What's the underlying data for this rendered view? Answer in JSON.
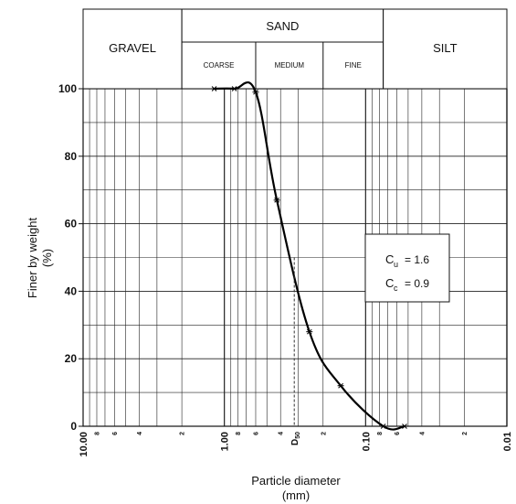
{
  "chart_data": {
    "type": "line",
    "xscale": "log",
    "x_reversed": true,
    "xlim": [
      10.0,
      0.01
    ],
    "ylim": [
      0,
      100
    ],
    "xlabel": "Particle diameter",
    "xlabel_unit": "(mm)",
    "ylabel": "Finer by weight",
    "ylabel_unit": "(%)",
    "y_ticks": [
      "0",
      "20",
      "40",
      "60",
      "80",
      "100"
    ],
    "x_major_ticks": [
      {
        "value": 10.0,
        "label": "10.00"
      },
      {
        "value": 1.0,
        "label": "1.00"
      },
      {
        "value": 0.1,
        "label": "0.10"
      },
      {
        "value": 0.01,
        "label": "0.01"
      }
    ],
    "x_minor_labels": [
      {
        "value": 8,
        "label": "8"
      },
      {
        "value": 6,
        "label": "6"
      },
      {
        "value": 4,
        "label": "4"
      },
      {
        "value": 2,
        "label": "2"
      },
      {
        "value": 0.8,
        "label": "8"
      },
      {
        "value": 0.6,
        "label": "6"
      },
      {
        "value": 0.4,
        "label": "4"
      },
      {
        "value": 0.2,
        "label": "2"
      },
      {
        "value": 0.08,
        "label": "8"
      },
      {
        "value": 0.06,
        "label": "6"
      },
      {
        "value": 0.04,
        "label": "4"
      },
      {
        "value": 0.02,
        "label": "2"
      }
    ],
    "grid": true,
    "series": [
      {
        "points": [
          {
            "x": 1.18,
            "y": 100
          },
          {
            "x": 0.85,
            "y": 100
          },
          {
            "x": 0.6,
            "y": 99
          },
          {
            "x": 0.425,
            "y": 67
          },
          {
            "x": 0.25,
            "y": 28
          },
          {
            "x": 0.15,
            "y": 12
          },
          {
            "x": 0.075,
            "y": 0
          },
          {
            "x": 0.053,
            "y": 0
          }
        ]
      }
    ],
    "d50": {
      "label": "D50",
      "label_main": "D",
      "label_sub": "50",
      "x": 0.32,
      "y": 50
    },
    "coefficients": [
      {
        "symbol": "C",
        "sub": "u",
        "value": "= 1.6"
      },
      {
        "symbol": "C",
        "sub": "c",
        "value": "= 0.9"
      }
    ],
    "classification": [
      {
        "name": "GRAVEL",
        "from": 10.0,
        "to": 2.0
      },
      {
        "name": "SAND",
        "from": 2.0,
        "to": 0.075,
        "subdivisions": [
          {
            "name": "COARSE",
            "from": 2.0,
            "to": 0.6
          },
          {
            "name": "MEDIUM",
            "from": 0.6,
            "to": 0.2
          },
          {
            "name": "FINE",
            "from": 0.2,
            "to": 0.075
          }
        ]
      },
      {
        "name": "SILT",
        "from": 0.075,
        "to": 0.01
      }
    ]
  }
}
